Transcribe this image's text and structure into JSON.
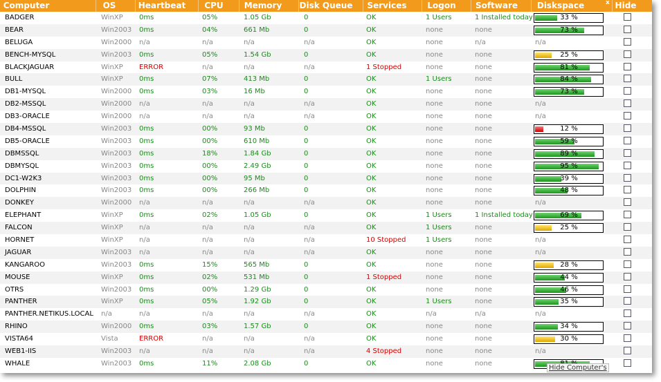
{
  "headers": [
    "Computer",
    "OS",
    "Heartbeat",
    "CPU",
    "Memory",
    "Disk Queue",
    "Services",
    "Logon",
    "Software",
    "Diskspace",
    "Hide"
  ],
  "close_label": "x",
  "hide_button_label": "Hide Computer's",
  "colors": {
    "header": "#f19a1c",
    "ok": "#1c8a1c",
    "error": "#d40000",
    "muted": "#888888"
  },
  "rows": [
    {
      "name": "BADGER",
      "os": "WinXP",
      "hb": "0ms",
      "cpu": "05%",
      "mem": "1.05 Gb",
      "dq": "0",
      "svc": "OK",
      "logon": "1 Users",
      "sw": "1 Installed today",
      "disk": {
        "label": "33 %",
        "value": 33,
        "color": "green"
      }
    },
    {
      "name": "BEAR",
      "os": "Win2003",
      "hb": "0ms",
      "cpu": "04%",
      "mem": "661 Mb",
      "dq": "0",
      "svc": "OK",
      "logon": "none",
      "sw": "none",
      "disk": {
        "label": "73 %",
        "value": 73,
        "color": "green"
      }
    },
    {
      "name": "BELUGA",
      "os": "Win2000",
      "hb": "n/a",
      "cpu": "n/a",
      "mem": "n/a",
      "dq": "n/a",
      "svc": "OK",
      "logon": "none",
      "sw": "n/a",
      "disk": {
        "label": "n/a"
      }
    },
    {
      "name": "BENCH-MYSQL",
      "os": "Win2003",
      "hb": "0ms",
      "cpu": "05%",
      "mem": "1.54 Gb",
      "dq": "0",
      "svc": "OK",
      "logon": "none",
      "sw": "none",
      "disk": {
        "label": "25 %",
        "value": 25,
        "color": "yellow"
      }
    },
    {
      "name": "BLACKJAGUAR",
      "os": "WinXP",
      "hb": "ERROR",
      "cpu": "n/a",
      "mem": "n/a",
      "dq": "n/a",
      "svc": "1 Stopped",
      "logon": "none",
      "sw": "none",
      "disk": {
        "label": "81 %",
        "value": 81,
        "color": "green"
      }
    },
    {
      "name": "BULL",
      "os": "WinXP",
      "hb": "0ms",
      "cpu": "07%",
      "mem": "413 Mb",
      "dq": "0",
      "svc": "OK",
      "logon": "1 Users",
      "sw": "none",
      "disk": {
        "label": "84 %",
        "value": 84,
        "color": "green"
      }
    },
    {
      "name": "DB1-MYSQL",
      "os": "Win2000",
      "hb": "0ms",
      "cpu": "03%",
      "mem": "16 Mb",
      "dq": "0",
      "svc": "OK",
      "logon": "none",
      "sw": "none",
      "disk": {
        "label": "73 %",
        "value": 73,
        "color": "green"
      }
    },
    {
      "name": "DB2-MSSQL",
      "os": "Win2000",
      "hb": "n/a",
      "cpu": "n/a",
      "mem": "n/a",
      "dq": "n/a",
      "svc": "OK",
      "logon": "none",
      "sw": "none",
      "disk": {
        "label": "n/a"
      }
    },
    {
      "name": "DB3-ORACLE",
      "os": "Win2000",
      "hb": "n/a",
      "cpu": "n/a",
      "mem": "n/a",
      "dq": "n/a",
      "svc": "OK",
      "logon": "none",
      "sw": "none",
      "disk": {
        "label": "n/a"
      }
    },
    {
      "name": "DB4-MSSQL",
      "os": "Win2003",
      "hb": "0ms",
      "cpu": "00%",
      "mem": "93 Mb",
      "dq": "0",
      "svc": "OK",
      "logon": "none",
      "sw": "none",
      "disk": {
        "label": "12 %",
        "value": 12,
        "color": "red"
      }
    },
    {
      "name": "DB5-ORACLE",
      "os": "Win2003",
      "hb": "0ms",
      "cpu": "00%",
      "mem": "610 Mb",
      "dq": "0",
      "svc": "OK",
      "logon": "none",
      "sw": "none",
      "disk": {
        "label": "59 %",
        "value": 59,
        "color": "green"
      }
    },
    {
      "name": "DBMSSQL",
      "os": "Win2003",
      "hb": "0ms",
      "cpu": "18%",
      "mem": "1.84 Gb",
      "dq": "0",
      "svc": "OK",
      "logon": "none",
      "sw": "none",
      "disk": {
        "label": "89 %",
        "value": 89,
        "color": "green"
      }
    },
    {
      "name": "DBMYSQL",
      "os": "Win2003",
      "hb": "0ms",
      "cpu": "00%",
      "mem": "2.49 Gb",
      "dq": "0",
      "svc": "OK",
      "logon": "none",
      "sw": "none",
      "disk": {
        "label": "95 %",
        "value": 95,
        "color": "green"
      }
    },
    {
      "name": "DC1-W2K3",
      "os": "Win2003",
      "hb": "0ms",
      "cpu": "00%",
      "mem": "95 Mb",
      "dq": "0",
      "svc": "OK",
      "logon": "none",
      "sw": "none",
      "disk": {
        "label": "39 %",
        "value": 39,
        "color": "green"
      }
    },
    {
      "name": "DOLPHIN",
      "os": "Win2003",
      "hb": "0ms",
      "cpu": "00%",
      "mem": "266 Mb",
      "dq": "0",
      "svc": "OK",
      "logon": "none",
      "sw": "none",
      "disk": {
        "label": "48 %",
        "value": 48,
        "color": "green"
      }
    },
    {
      "name": "DONKEY",
      "os": "Win2000",
      "hb": "n/a",
      "cpu": "n/a",
      "mem": "n/a",
      "dq": "n/a",
      "svc": "OK",
      "logon": "none",
      "sw": "none",
      "disk": {
        "label": "n/a"
      }
    },
    {
      "name": "ELEPHANT",
      "os": "WinXP",
      "hb": "0ms",
      "cpu": "02%",
      "mem": "1.05 Gb",
      "dq": "0",
      "svc": "OK",
      "logon": "1 Users",
      "sw": "1 Installed today",
      "disk": {
        "label": "69 %",
        "value": 69,
        "color": "green"
      }
    },
    {
      "name": "FALCON",
      "os": "WinXP",
      "hb": "n/a",
      "cpu": "n/a",
      "mem": "n/a",
      "dq": "n/a",
      "svc": "OK",
      "logon": "1 Users",
      "sw": "none",
      "disk": {
        "label": "25 %",
        "value": 25,
        "color": "yellow"
      }
    },
    {
      "name": "HORNET",
      "os": "WinXP",
      "hb": "n/a",
      "cpu": "n/a",
      "mem": "n/a",
      "dq": "n/a",
      "svc": "10 Stopped",
      "logon": "1 Users",
      "sw": "none",
      "disk": {
        "label": "n/a"
      }
    },
    {
      "name": "JAGUAR",
      "os": "Win2003",
      "hb": "n/a",
      "cpu": "n/a",
      "mem": "n/a",
      "dq": "n/a",
      "svc": "OK",
      "logon": "none",
      "sw": "none",
      "disk": {
        "label": "n/a"
      }
    },
    {
      "name": "KANGAROO",
      "os": "Win2003",
      "hb": "0ms",
      "cpu": "15%",
      "mem": "565 Mb",
      "dq": "0",
      "svc": "OK",
      "logon": "none",
      "sw": "none",
      "disk": {
        "label": "28 %",
        "value": 28,
        "color": "yellow"
      }
    },
    {
      "name": "MOUSE",
      "os": "WinXP",
      "hb": "0ms",
      "cpu": "02%",
      "mem": "531 Mb",
      "dq": "0",
      "svc": "1 Stopped",
      "logon": "none",
      "sw": "none",
      "disk": {
        "label": "44 %",
        "value": 44,
        "color": "green"
      }
    },
    {
      "name": "OTRS",
      "os": "Win2003",
      "hb": "0ms",
      "cpu": "00%",
      "mem": "1.29 Gb",
      "dq": "0",
      "svc": "OK",
      "logon": "none",
      "sw": "none",
      "disk": {
        "label": "46 %",
        "value": 46,
        "color": "green"
      }
    },
    {
      "name": "PANTHER",
      "os": "WinXP",
      "hb": "0ms",
      "cpu": "05%",
      "mem": "1.92 Gb",
      "dq": "0",
      "svc": "OK",
      "logon": "1 Users",
      "sw": "none",
      "disk": {
        "label": "35 %",
        "value": 35,
        "color": "green"
      }
    },
    {
      "name": "PANTHER.NETIKUS.LOCAL",
      "os": "n/a",
      "hb": "n/a",
      "cpu": "n/a",
      "mem": "n/a",
      "dq": "n/a",
      "svc": "OK",
      "logon": "n/a",
      "sw": "n/a",
      "disk": {
        "label": "n/a"
      }
    },
    {
      "name": "RHINO",
      "os": "Win2000",
      "hb": "0ms",
      "cpu": "03%",
      "mem": "1.57 Gb",
      "dq": "0",
      "svc": "OK",
      "logon": "none",
      "sw": "none",
      "disk": {
        "label": "34 %",
        "value": 34,
        "color": "green"
      }
    },
    {
      "name": "VISTA64",
      "os": "Vista",
      "hb": "ERROR",
      "cpu": "n/a",
      "mem": "n/a",
      "dq": "n/a",
      "svc": "OK",
      "logon": "none",
      "sw": "none",
      "disk": {
        "label": "30 %",
        "value": 30,
        "color": "yellow"
      }
    },
    {
      "name": "WEB1-IIS",
      "os": "Win2003",
      "hb": "n/a",
      "cpu": "n/a",
      "mem": "n/a",
      "dq": "n/a",
      "svc": "4 Stopped",
      "logon": "none",
      "sw": "none",
      "disk": {
        "label": "n/a"
      }
    },
    {
      "name": "WHALE",
      "os": "Win2003",
      "hb": "0ms",
      "cpu": "11%",
      "mem": "2.08 Gb",
      "dq": "0",
      "svc": "OK",
      "logon": "none",
      "sw": "none",
      "disk": {
        "label": "81 %",
        "value": 81,
        "color": "green"
      }
    }
  ]
}
